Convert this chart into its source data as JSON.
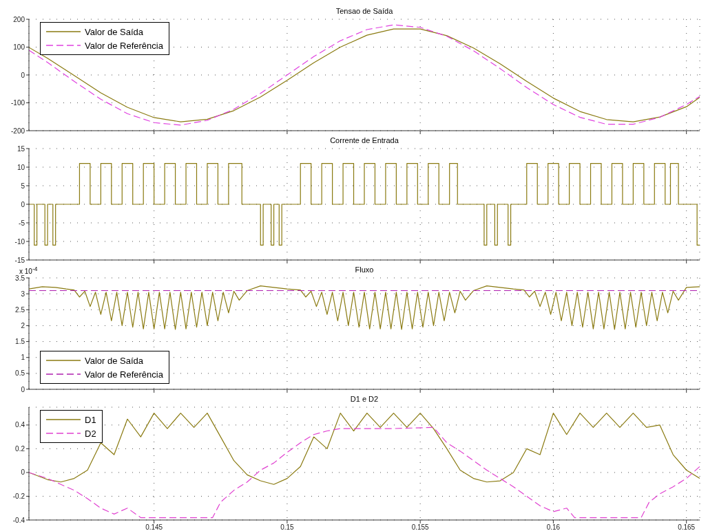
{
  "chart_data": [
    {
      "type": "line",
      "title": "Tensao de Saída",
      "x": [
        0.1403,
        0.141,
        0.142,
        0.143,
        0.144,
        0.145,
        0.146,
        0.147,
        0.148,
        0.149,
        0.15,
        0.151,
        0.152,
        0.153,
        0.154,
        0.155,
        0.156,
        0.157,
        0.158,
        0.159,
        0.16,
        0.161,
        0.162,
        0.163,
        0.164,
        0.165,
        0.1655
      ],
      "xlim": [
        0.1403,
        0.1655
      ],
      "xticks": [
        0.145,
        0.15,
        0.155,
        0.16,
        0.165
      ],
      "ylim": [
        -200,
        200
      ],
      "yticks": [
        -200,
        -100,
        0,
        100,
        200
      ],
      "grid": true,
      "legend": "top left",
      "tick_labels": "y",
      "series": [
        {
          "name": "Valor de Saída",
          "color": "#8a7a10",
          "line_style": "solid",
          "values": [
            99,
            60,
            -2,
            -64,
            -116,
            -153,
            -168,
            -159,
            -128,
            -79,
            -19,
            44,
            100,
            143,
            165,
            165,
            141,
            97,
            40,
            -23,
            -83,
            -131,
            -160,
            -168,
            -151,
            -114,
            -80
          ]
        },
        {
          "name": "Valor de Referência",
          "color": "#e040e0",
          "line_style": "dashed",
          "values": [
            89,
            45,
            -23,
            -87,
            -139,
            -171,
            -180,
            -163,
            -123,
            -66,
            0,
            66,
            123,
            163,
            180,
            171,
            139,
            87,
            23,
            -45,
            -106,
            -152,
            -177,
            -177,
            -152,
            -106,
            -77
          ]
        }
      ]
    },
    {
      "type": "step",
      "title": "Corrente de Entrada",
      "xlim": [
        0.1403,
        0.1655
      ],
      "xticks": [
        0.145,
        0.15,
        0.155,
        0.16,
        0.165
      ],
      "ylim": [
        -15,
        15
      ],
      "yticks": [
        -15,
        -10,
        -5,
        0,
        5,
        10,
        15
      ],
      "grid": true,
      "tick_labels": "y",
      "series": [
        {
          "color": "#8a7a10",
          "x": [
            0.1403,
            0.1405,
            0.1406,
            0.1409,
            0.141,
            0.1412,
            0.1413,
            0.1422,
            0.1426,
            0.143,
            0.1434,
            0.1438,
            0.1442,
            0.1446,
            0.145,
            0.1454,
            0.1458,
            0.1462,
            0.1466,
            0.147,
            0.1474,
            0.1478,
            0.1483,
            0.149,
            0.1491,
            0.1494,
            0.1495,
            0.1497,
            0.1498,
            0.1505,
            0.1509,
            0.1513,
            0.1517,
            0.1521,
            0.1525,
            0.1529,
            0.1533,
            0.1537,
            0.1541,
            0.1545,
            0.1549,
            0.1553,
            0.1557,
            0.1561,
            0.1564,
            0.1574,
            0.1575,
            0.1578,
            0.1579,
            0.1583,
            0.1584,
            0.159,
            0.1594,
            0.1598,
            0.1602,
            0.1606,
            0.161,
            0.1614,
            0.1618,
            0.1622,
            0.1626,
            0.163,
            0.1634,
            0.1638,
            0.1642,
            0.1644,
            0.1647,
            0.1654,
            0.1655
          ],
          "values": [
            0,
            -11,
            0,
            -11,
            0,
            -11,
            0,
            11,
            0,
            11,
            0,
            11,
            0,
            11,
            0,
            11,
            0,
            11,
            0,
            11,
            0,
            11,
            0,
            -11,
            0,
            -11,
            0,
            -11,
            0,
            11,
            0,
            11,
            0,
            11,
            0,
            11,
            0,
            11,
            0,
            11,
            0,
            11,
            0,
            11,
            0,
            -11,
            0,
            -11,
            0,
            -11,
            0,
            11,
            0,
            11,
            0,
            11,
            0,
            11,
            0,
            11,
            0,
            11,
            0,
            11,
            0,
            11,
            0,
            -11,
            -11
          ]
        }
      ]
    },
    {
      "type": "line",
      "title": "Fluxo",
      "annotations": [
        "x 10$^{-4}$"
      ],
      "xlim": [
        0.1403,
        0.1655
      ],
      "xticks": [
        0.145,
        0.15,
        0.155,
        0.16,
        0.165
      ],
      "ylim": [
        0,
        3.5
      ],
      "yticks": [
        0,
        0.5,
        1,
        1.5,
        2,
        2.5,
        3,
        3.5
      ],
      "grid": true,
      "legend": "bottom left",
      "tick_labels": "y",
      "series": [
        {
          "name": "Valor de Saída",
          "color": "#8a7a10",
          "line_style": "solid",
          "x": [
            0.1403,
            0.1408,
            0.1413,
            0.1417,
            0.142,
            0.1422,
            0.1424,
            0.1426,
            0.1428,
            0.143,
            0.1432,
            0.1434,
            0.1436,
            0.1438,
            0.144,
            0.1442,
            0.1444,
            0.1446,
            0.1448,
            0.145,
            0.1452,
            0.1454,
            0.1456,
            0.1458,
            0.146,
            0.1462,
            0.1464,
            0.1466,
            0.1468,
            0.147,
            0.1472,
            0.1474,
            0.1476,
            0.1478,
            0.148,
            0.1482,
            0.1485,
            0.149,
            0.1495,
            0.15,
            0.1505,
            0.1507,
            0.1509,
            0.1511,
            0.1513,
            0.1515,
            0.1517,
            0.1519,
            0.1521,
            0.1523,
            0.1525,
            0.1527,
            0.1529,
            0.1531,
            0.1533,
            0.1535,
            0.1537,
            0.1539,
            0.1541,
            0.1543,
            0.1545,
            0.1547,
            0.1549,
            0.1551,
            0.1553,
            0.1555,
            0.1557,
            0.1559,
            0.1561,
            0.1563,
            0.1565,
            0.1567,
            0.157,
            0.1575,
            0.158,
            0.1585,
            0.1589,
            0.1591,
            0.1593,
            0.1595,
            0.1597,
            0.1599,
            0.1601,
            0.1603,
            0.1605,
            0.1607,
            0.1609,
            0.1611,
            0.1613,
            0.1615,
            0.1617,
            0.1619,
            0.1621,
            0.1623,
            0.1625,
            0.1627,
            0.1629,
            0.1631,
            0.1633,
            0.1635,
            0.1637,
            0.1639,
            0.1641,
            0.1643,
            0.1645,
            0.1647,
            0.165,
            0.1655
          ],
          "values": [
            3.15,
            3.22,
            3.2,
            3.15,
            3.12,
            2.9,
            3.08,
            2.6,
            3.05,
            2.35,
            3.05,
            2.15,
            3.05,
            2.0,
            3.05,
            1.95,
            3.05,
            1.9,
            3.05,
            1.9,
            3.05,
            1.9,
            3.05,
            1.88,
            3.05,
            1.9,
            3.05,
            1.95,
            3.05,
            2.0,
            3.05,
            2.15,
            3.05,
            2.4,
            3.08,
            2.8,
            3.1,
            3.25,
            3.2,
            3.15,
            3.12,
            2.9,
            3.08,
            2.6,
            3.05,
            2.35,
            3.05,
            2.15,
            3.05,
            2.0,
            3.05,
            1.95,
            3.05,
            1.9,
            3.05,
            1.9,
            3.05,
            1.9,
            3.05,
            1.88,
            3.05,
            1.9,
            3.05,
            1.95,
            3.05,
            2.0,
            3.05,
            2.15,
            3.05,
            2.4,
            3.08,
            2.8,
            3.1,
            3.25,
            3.2,
            3.15,
            3.12,
            2.9,
            3.08,
            2.6,
            3.05,
            2.35,
            3.05,
            2.15,
            3.05,
            2.0,
            3.05,
            1.95,
            3.05,
            1.9,
            3.05,
            1.9,
            3.05,
            1.88,
            3.05,
            1.9,
            3.05,
            1.95,
            3.05,
            2.0,
            3.05,
            2.15,
            3.05,
            2.4,
            3.08,
            2.8,
            3.2,
            3.22
          ]
        },
        {
          "name": "Valor de Referência",
          "color": "#b020b0",
          "line_style": "dashed",
          "x": [
            0.1403,
            0.1655
          ],
          "values": [
            3.1,
            3.1
          ]
        }
      ]
    },
    {
      "type": "line",
      "title": "D1 e D2",
      "xlim": [
        0.1403,
        0.1655
      ],
      "xticks": [
        0.145,
        0.15,
        0.155,
        0.16,
        0.165
      ],
      "ylim": [
        -0.4,
        0.55
      ],
      "yticks": [
        -0.4,
        -0.2,
        0,
        0.2,
        0.4
      ],
      "grid": true,
      "legend": "top left",
      "series": [
        {
          "name": "D1",
          "color": "#8a7a10",
          "line_style": "solid",
          "x": [
            0.1403,
            0.141,
            0.1415,
            0.142,
            0.1425,
            0.143,
            0.1435,
            0.144,
            0.1445,
            0.145,
            0.1455,
            0.146,
            0.1465,
            0.147,
            0.1475,
            0.148,
            0.1485,
            0.149,
            0.1495,
            0.15,
            0.1505,
            0.151,
            0.1515,
            0.152,
            0.1525,
            0.153,
            0.1535,
            0.154,
            0.1545,
            0.155,
            0.1555,
            0.156,
            0.1565,
            0.157,
            0.1575,
            0.158,
            0.1585,
            0.159,
            0.1595,
            0.16,
            0.1605,
            0.161,
            0.1615,
            0.162,
            0.1625,
            0.163,
            0.1635,
            0.164,
            0.1645,
            0.165,
            0.1655
          ],
          "values": [
            0,
            -0.06,
            -0.08,
            -0.05,
            0.02,
            0.25,
            0.15,
            0.45,
            0.3,
            0.5,
            0.37,
            0.5,
            0.38,
            0.5,
            0.3,
            0.1,
            -0.02,
            -0.07,
            -0.1,
            -0.05,
            0.05,
            0.3,
            0.2,
            0.5,
            0.35,
            0.5,
            0.38,
            0.5,
            0.38,
            0.5,
            0.37,
            0.2,
            0.02,
            -0.05,
            -0.08,
            -0.07,
            0,
            0.2,
            0.15,
            0.5,
            0.32,
            0.5,
            0.38,
            0.5,
            0.38,
            0.5,
            0.38,
            0.4,
            0.15,
            0.02,
            -0.05
          ]
        },
        {
          "name": "D2",
          "color": "#e040d0",
          "line_style": "dashed",
          "x": [
            0.1403,
            0.141,
            0.1415,
            0.142,
            0.1425,
            0.143,
            0.1435,
            0.144,
            0.1445,
            0.145,
            0.146,
            0.1472,
            0.1475,
            0.148,
            0.1485,
            0.149,
            0.1495,
            0.15,
            0.1505,
            0.151,
            0.1515,
            0.152,
            0.153,
            0.154,
            0.1555,
            0.156,
            0.1565,
            0.157,
            0.1575,
            0.158,
            0.1585,
            0.159,
            0.1595,
            0.16,
            0.1605,
            0.1608,
            0.162,
            0.1633,
            0.1636,
            0.164,
            0.1645,
            0.165,
            0.1655
          ],
          "values": [
            0,
            -0.05,
            -0.1,
            -0.15,
            -0.22,
            -0.3,
            -0.35,
            -0.3,
            -0.38,
            -0.38,
            -0.38,
            -0.38,
            -0.25,
            -0.15,
            -0.08,
            0.02,
            0.08,
            0.17,
            0.25,
            0.32,
            0.35,
            0.37,
            0.37,
            0.37,
            0.38,
            0.25,
            0.18,
            0.1,
            0.02,
            -0.05,
            -0.12,
            -0.2,
            -0.28,
            -0.33,
            -0.3,
            -0.38,
            -0.38,
            -0.38,
            -0.25,
            -0.18,
            -0.12,
            -0.05,
            0.05
          ]
        }
      ]
    }
  ]
}
